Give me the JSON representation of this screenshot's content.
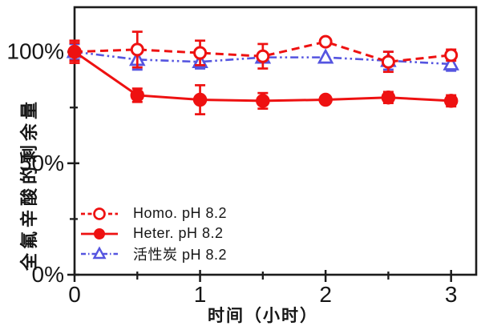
{
  "figure": {
    "background": "#ffffff",
    "axis_color": "#1c1c1c",
    "text_color": "#161616"
  },
  "chart_data": {
    "type": "line",
    "title": "",
    "xlabel": "时间（小时）",
    "ylabel": "全氟辛酸的剩余量",
    "grid": false,
    "legend_position": "inside-bottom-left",
    "xlim": [
      0,
      3.2
    ],
    "ylim": [
      0,
      120
    ],
    "x_major_ticks": [
      {
        "value": 0,
        "label": "0"
      },
      {
        "value": 1,
        "label": "1"
      },
      {
        "value": 2,
        "label": "2"
      },
      {
        "value": 3,
        "label": "3"
      }
    ],
    "x_minor_ticks": [
      0.5,
      1.5,
      2.5
    ],
    "y_major_ticks": [
      {
        "value": 0,
        "label": "0%"
      },
      {
        "value": 50,
        "label": "50%"
      },
      {
        "value": 100,
        "label": "100%"
      }
    ],
    "y_minor_ticks": [
      25,
      75
    ],
    "x": [
      0,
      0.5,
      1,
      1.5,
      2,
      2.5,
      3
    ],
    "series": [
      {
        "name": "Homo. pH 8.2",
        "color": "#ee1111",
        "line": "dashed",
        "marker": "open-circle",
        "values": [
          100,
          101,
          99.5,
          98,
          104.5,
          95.5,
          98.5
        ],
        "errors": [
          5,
          8,
          5.5,
          5.5,
          0,
          4.5,
          2.5
        ]
      },
      {
        "name": "Heter. pH 8.2",
        "color": "#ee1111",
        "line": "solid",
        "marker": "filled-circle",
        "values": [
          100,
          80.5,
          78.5,
          78,
          78.5,
          79.5,
          78
        ],
        "errors": [
          4,
          3,
          6.5,
          3.5,
          0,
          2.5,
          2.5
        ]
      },
      {
        "name": "活性炭 pH 8.2",
        "color": "#5555e0",
        "line": "dash-dot",
        "marker": "open-triangle",
        "values": [
          100,
          96.5,
          95.5,
          97.5,
          97.5,
          96,
          94.5
        ],
        "errors": [
          3.5,
          4.5,
          3,
          2,
          0,
          4,
          3
        ]
      }
    ]
  }
}
